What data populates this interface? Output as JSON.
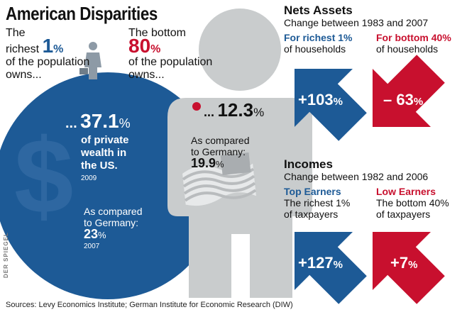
{
  "title": "American Disparities",
  "intro": {
    "richest": {
      "line1": "The",
      "line2": "richest",
      "value": "1",
      "unit": "%",
      "line3": "of the population",
      "line4": "owns..."
    },
    "bottom": {
      "line1": "The bottom",
      "value": "80",
      "unit": "%",
      "line2": "of the population",
      "line3": "owns..."
    }
  },
  "circle": {
    "prefix": "...",
    "value": "37.1",
    "unit": "%",
    "lines": [
      "of private",
      "wealth in",
      "the US."
    ],
    "year": "2009",
    "compare_label": [
      "As compared",
      "to Germany:"
    ],
    "compare_value": "23",
    "compare_unit": "%",
    "compare_year": "2007"
  },
  "figure": {
    "prefix": "...",
    "value": "12.3",
    "unit": "%",
    "compare_label": [
      "As compared",
      "to Germany:"
    ],
    "compare_value": "19.9",
    "compare_unit": "%"
  },
  "nets": {
    "title": "Nets Assets",
    "subtitle": "Change between 1983 and 2007",
    "left_head": "For richest 1%",
    "left_sub": "of households",
    "right_head": "For bottom 40%",
    "right_sub": "of households",
    "left_value": "+103",
    "right_value": "– 63",
    "unit": "%"
  },
  "incomes": {
    "title": "Incomes",
    "subtitle": "Change between 1982 and 2006",
    "left_head": "Top Earners",
    "left_sub": [
      "The richest 1%",
      "of taxpayers"
    ],
    "right_head": "Low Earners",
    "right_sub": [
      "The bottom 40%",
      "of taxpayers"
    ],
    "left_value": "+127",
    "right_value": "+7",
    "unit": "%"
  },
  "credit": "DER SPIEGEL",
  "source": "Sources: Levy Economics Institute; German Institute for Economic Research (DIW)",
  "colors": {
    "blue": "#1d5a96",
    "red": "#c8102e",
    "grey": "#c9cccd"
  },
  "icons": [
    "dollar-sign-icon",
    "businessman-icon",
    "us-flag-icon"
  ],
  "chart_data": [
    {
      "type": "table",
      "title": "American Disparities",
      "rows": [
        {
          "group": "richest 1% of the population",
          "share_of_private_wealth_us_pct": 37.1,
          "year": 2009,
          "germany_pct": 23,
          "germany_year": 2007
        },
        {
          "group": "bottom 80% of the population",
          "share_of_private_wealth_us_pct": 12.3,
          "germany_pct": 19.9
        }
      ]
    },
    {
      "type": "bar",
      "title": "Nets Assets",
      "subtitle": "Change between 1983 and 2007",
      "categories": [
        "For richest 1% of households",
        "For bottom 40% of households"
      ],
      "values": [
        103,
        -63
      ]
    },
    {
      "type": "bar",
      "title": "Incomes",
      "subtitle": "Change between 1982 and 2006",
      "categories": [
        "Top Earners",
        "Low Earners"
      ],
      "values": [
        127,
        7
      ]
    }
  ]
}
